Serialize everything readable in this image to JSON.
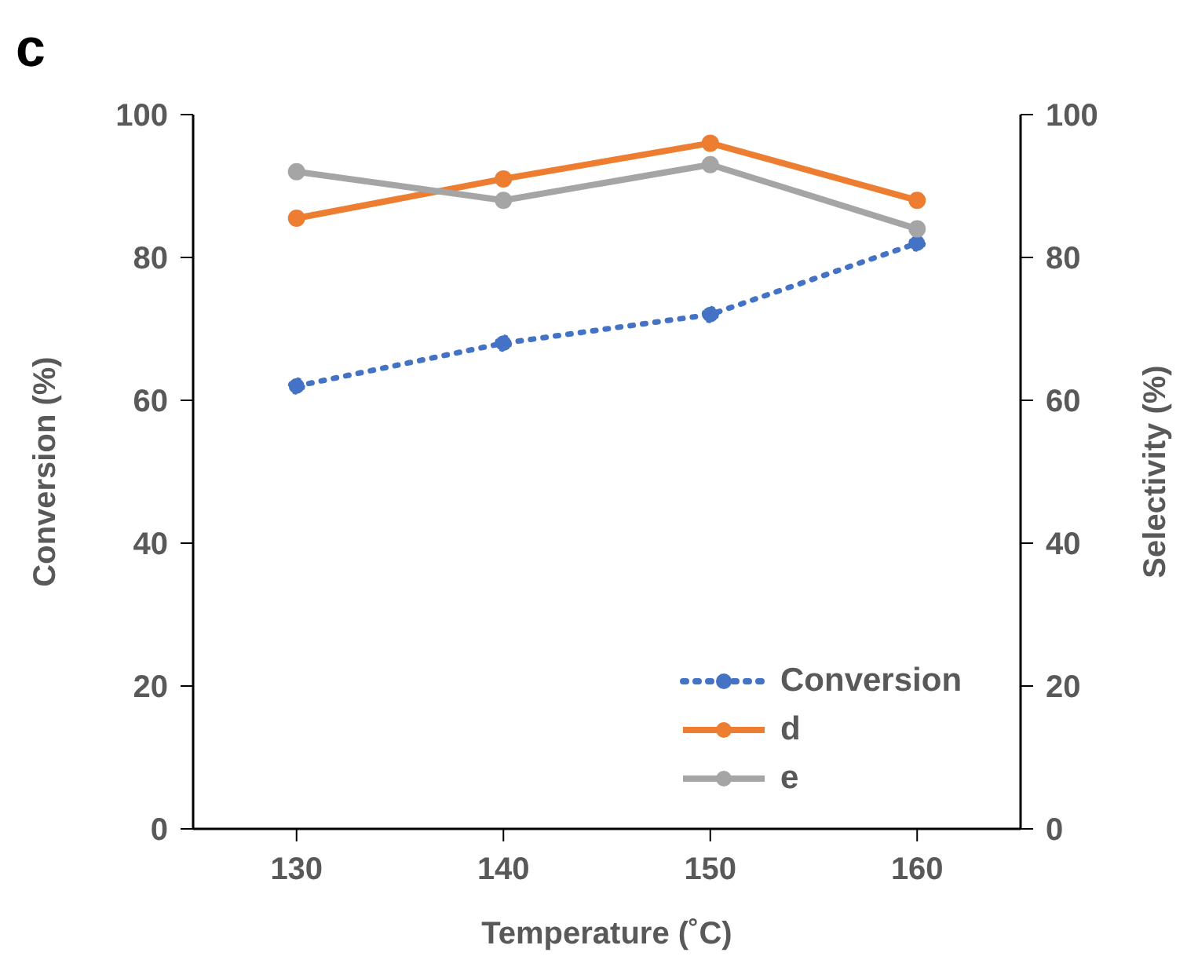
{
  "chart_data": {
    "type": "line",
    "title": "c",
    "xlabel": "Temperature (˚C)",
    "ylabel": "Conversion (%)",
    "y2label": "Selectivity (%)",
    "x": [
      130,
      140,
      150,
      160
    ],
    "xlim": [
      125,
      165
    ],
    "xticks": [
      130,
      140,
      150,
      160
    ],
    "ylim": [
      0,
      100
    ],
    "yticks": [
      0,
      20,
      40,
      60,
      80,
      100
    ],
    "y2lim": [
      0,
      100
    ],
    "y2ticks": [
      0,
      20,
      40,
      60,
      80,
      100
    ],
    "series": [
      {
        "name": "Conversion",
        "color": "#4472c4",
        "values": [
          62,
          68,
          72,
          82
        ],
        "line_style": "dotted"
      },
      {
        "name": "d",
        "color": "#ed7d31",
        "values": [
          85.5,
          91,
          96,
          88
        ],
        "axis": "y2",
        "line_style": "solid"
      },
      {
        "name": "e",
        "color": "#a5a5a5",
        "values": [
          92,
          88,
          93,
          84
        ],
        "axis": "y2",
        "line_style": "solid"
      }
    ],
    "marker": "circle",
    "grid": false,
    "legend": "bottom right"
  }
}
